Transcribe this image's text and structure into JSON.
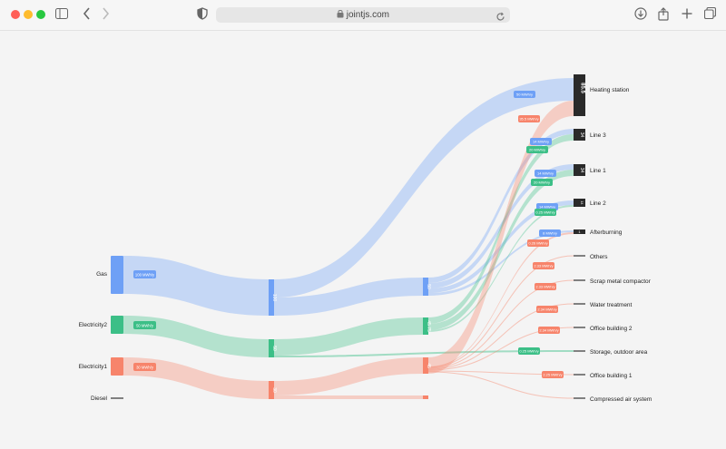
{
  "browser": {
    "url": "jointjs.com",
    "icons": [
      "sidebar-icon",
      "back-chevron-icon",
      "forward-chevron-icon",
      "shield-icon",
      "lock-icon",
      "reload-icon",
      "download-icon",
      "share-icon",
      "new-tab-plus-icon",
      "tabs-overview-icon"
    ]
  },
  "diagram": {
    "sources": [
      {
        "label": "Gas",
        "value_label": "100 MWh/y"
      },
      {
        "label": "Electricity2",
        "value_label": "50 MWh/y"
      },
      {
        "label": "Electricity1",
        "value_label": "30 MWh/y"
      },
      {
        "label": "Diesel",
        "value_label": ""
      }
    ],
    "mid_nodes": [
      {
        "label": "100"
      },
      {
        "label": "50"
      },
      {
        "label": "30"
      }
    ],
    "hub_nodes": [
      {
        "label": "50"
      },
      {
        "label": "45.75"
      },
      {
        "label": "45"
      },
      {
        "label": ""
      }
    ],
    "targets": [
      {
        "label": "Heating station",
        "value": "85.5"
      },
      {
        "label": "Line 3",
        "value": "34"
      },
      {
        "label": "Line 1",
        "value": "34"
      },
      {
        "label": "Line 2",
        "value": "14"
      },
      {
        "label": "Afterburning",
        "value": "1"
      },
      {
        "label": "Others",
        "value": ""
      },
      {
        "label": "Scrap metal compactor",
        "value": ""
      },
      {
        "label": "Water treatment",
        "value": ""
      },
      {
        "label": "Office building 2",
        "value": ""
      },
      {
        "label": "Storage, outdoor area",
        "value": ""
      },
      {
        "label": "Office building 1",
        "value": ""
      },
      {
        "label": "Compressed air system",
        "value": ""
      }
    ],
    "flow_badges": [
      {
        "text": "50 MWh/y",
        "color": "#6ea0f6"
      },
      {
        "text": "35.5 MWh/y",
        "color": "#f7846b"
      },
      {
        "text": "14 MWh/y",
        "color": "#6ea0f6"
      },
      {
        "text": "20 MWh/y",
        "color": "#3cbf87"
      },
      {
        "text": "14 MWh/y",
        "color": "#6ea0f6"
      },
      {
        "text": "20 MWh/y",
        "color": "#3cbf87"
      },
      {
        "text": "14 MWh/y",
        "color": "#6ea0f6"
      },
      {
        "text": "0.25 MWh/y",
        "color": "#3cbf87"
      },
      {
        "text": "8 MWh/y",
        "color": "#6ea0f6"
      },
      {
        "text": "0.26 MWh/y",
        "color": "#f7846b"
      },
      {
        "text": "2.33 MWh/y",
        "color": "#f7846b"
      },
      {
        "text": "2.33 MWh/y",
        "color": "#f7846b"
      },
      {
        "text": "2.34 MWh/y",
        "color": "#f7846b"
      },
      {
        "text": "2.34 MWh/y",
        "color": "#f7846b"
      },
      {
        "text": "0.25 MWh/y",
        "color": "#3cbf87"
      },
      {
        "text": "2.25 MWh/y",
        "color": "#f7846b"
      }
    ],
    "colors": {
      "gas": "#6ea0f6",
      "electricity2": "#3cbf87",
      "electricity1": "#f7846b",
      "target_node": "#2a2a2a"
    }
  }
}
